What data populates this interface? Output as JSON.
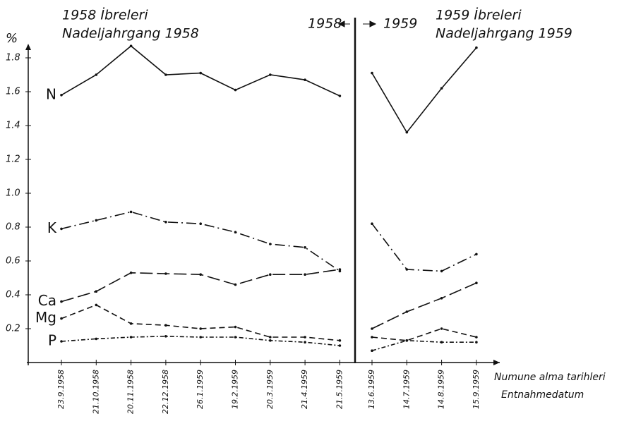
{
  "chart_data": {
    "type": "line",
    "y_label": "%",
    "x_label": "Numune alma tarihleri",
    "x_label_2": "Entnahmedatum",
    "ylim": [
      0,
      1.85
    ],
    "yticks": [
      0.2,
      0.4,
      0.6,
      0.8,
      {
        "value": 1,
        "label": "1.0"
      },
      1.2,
      1.4,
      1.6,
      1.8
    ],
    "panels": [
      {
        "marker": "1958",
        "title": "1958 İbreleri",
        "subtitle": "Nadeljahrgang 1958",
        "categories": [
          "23.9.1958",
          "21.10.1958",
          "20.11.1958",
          "22.12.1958",
          "26.1.1959",
          "19.2.1959",
          "20.3.1959",
          "21.4.1959",
          "21.5.1959"
        ]
      },
      {
        "marker": "1959",
        "title": "1959 İbreleri",
        "subtitle": "Nadeljahrgang 1959",
        "categories": [
          "13.6.1959",
          "14.7.1959",
          "14.8.1959",
          "15.9.1959"
        ]
      }
    ],
    "series": [
      {
        "name": "N",
        "color": "#111",
        "dash": "solid",
        "values": [
          1.58,
          1.7,
          1.87,
          1.7,
          1.71,
          1.61,
          1.7,
          1.67,
          1.575,
          1.71,
          1.36,
          1.62,
          1.86
        ]
      },
      {
        "name": "K",
        "color": "#111",
        "dash": "dashdot",
        "values": [
          0.79,
          0.84,
          0.89,
          0.83,
          0.82,
          0.77,
          0.7,
          0.68,
          0.54,
          0.82,
          0.55,
          0.54,
          0.64
        ]
      },
      {
        "name": "Ca",
        "color": "#111",
        "dash": "longdash",
        "values": [
          0.36,
          0.42,
          0.53,
          0.525,
          0.52,
          0.46,
          0.52,
          0.52,
          0.55,
          0.2,
          0.3,
          0.38,
          0.47
        ]
      },
      {
        "name": "Mg",
        "color": "#111",
        "dash": "dashed",
        "values": [
          0.26,
          0.34,
          0.23,
          0.22,
          0.2,
          0.21,
          0.15,
          0.15,
          0.13,
          0.15,
          0.13,
          0.2,
          0.15
        ]
      },
      {
        "name": "P",
        "color": "#111",
        "dash": "dotdash",
        "values": [
          0.125,
          0.14,
          0.15,
          0.155,
          0.15,
          0.15,
          0.13,
          0.12,
          0.1,
          0.07,
          0.13,
          0.12,
          0.12
        ]
      }
    ]
  }
}
